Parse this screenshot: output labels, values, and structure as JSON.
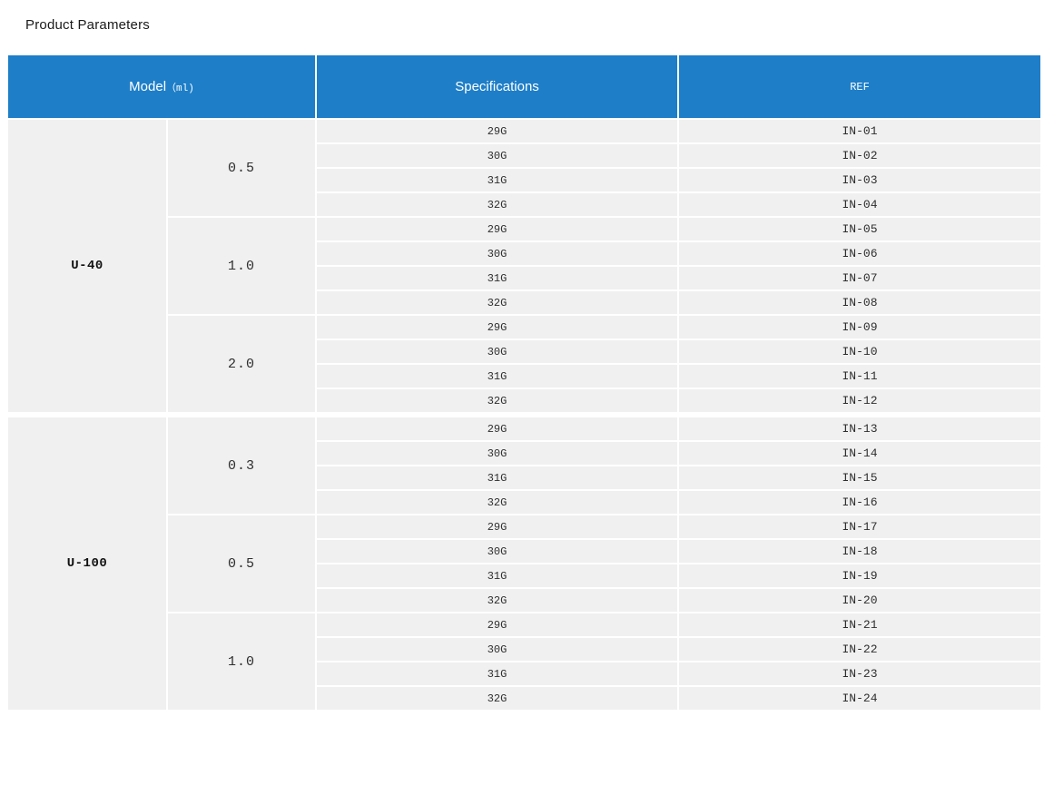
{
  "page": {
    "title": "Product Parameters"
  },
  "colors": {
    "header_bg": "#1e7ec8",
    "header_text": "#ffffff",
    "cell_bg": "#f0f0f0",
    "body_text": "#2e2e2e"
  },
  "table": {
    "header": {
      "model_main": "Model",
      "model_unit": "（ml)",
      "specifications": "Specifications",
      "ref": "REF"
    },
    "groups": [
      {
        "model": "U-40",
        "subgroups": [
          {
            "ml": "0.5",
            "rows": [
              {
                "spec": "29G",
                "ref": "IN-01"
              },
              {
                "spec": "30G",
                "ref": "IN-02"
              },
              {
                "spec": "31G",
                "ref": "IN-03"
              },
              {
                "spec": "32G",
                "ref": "IN-04"
              }
            ]
          },
          {
            "ml": "1.0",
            "rows": [
              {
                "spec": "29G",
                "ref": "IN-05"
              },
              {
                "spec": "30G",
                "ref": "IN-06"
              },
              {
                "spec": "31G",
                "ref": "IN-07"
              },
              {
                "spec": "32G",
                "ref": "IN-08"
              }
            ]
          },
          {
            "ml": "2.0",
            "rows": [
              {
                "spec": "29G",
                "ref": "IN-09"
              },
              {
                "spec": "30G",
                "ref": "IN-10"
              },
              {
                "spec": "31G",
                "ref": "IN-11"
              },
              {
                "spec": "32G",
                "ref": "IN-12"
              }
            ]
          }
        ]
      },
      {
        "model": "U-100",
        "subgroups": [
          {
            "ml": "0.3",
            "rows": [
              {
                "spec": "29G",
                "ref": "IN-13"
              },
              {
                "spec": "30G",
                "ref": "IN-14"
              },
              {
                "spec": "31G",
                "ref": "IN-15"
              },
              {
                "spec": "32G",
                "ref": "IN-16"
              }
            ]
          },
          {
            "ml": "0.5",
            "rows": [
              {
                "spec": "29G",
                "ref": "IN-17"
              },
              {
                "spec": "30G",
                "ref": "IN-18"
              },
              {
                "spec": "31G",
                "ref": "IN-19"
              },
              {
                "spec": "32G",
                "ref": "IN-20"
              }
            ]
          },
          {
            "ml": "1.0",
            "rows": [
              {
                "spec": "29G",
                "ref": "IN-21"
              },
              {
                "spec": "30G",
                "ref": "IN-22"
              },
              {
                "spec": "31G",
                "ref": "IN-23"
              },
              {
                "spec": "32G",
                "ref": "IN-24"
              }
            ]
          }
        ]
      }
    ]
  }
}
